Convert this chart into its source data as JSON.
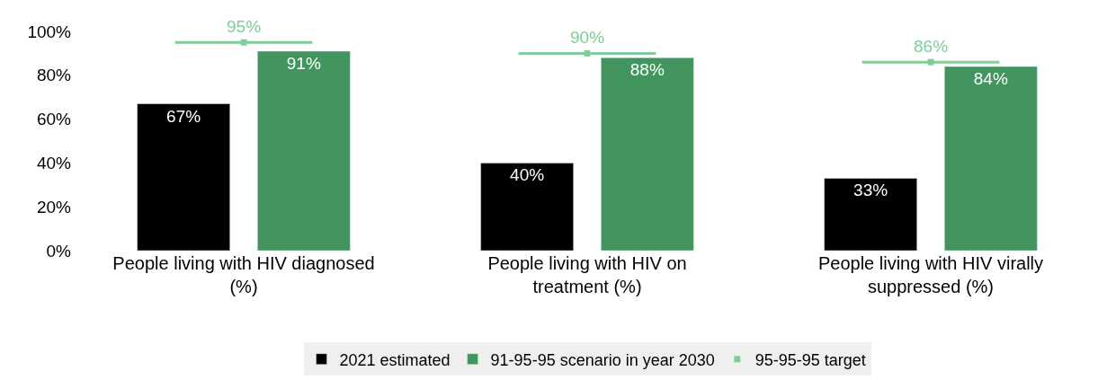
{
  "chart_data": {
    "type": "bar",
    "categories": [
      "People living with HIV diagnosed (%)",
      "People living with HIV on treatment (%)",
      "People living with HIV virally suppressed (%)"
    ],
    "series": [
      {
        "name": "2021 estimated",
        "color": "#000000",
        "values": [
          67,
          40,
          33
        ],
        "value_labels": [
          "67%",
          "40%",
          "33%"
        ]
      },
      {
        "name": "91-95-95 scenario in year 2030",
        "color": "#43955f",
        "values": [
          91,
          88,
          84
        ],
        "value_labels": [
          "91%",
          "88%",
          "84%"
        ]
      },
      {
        "name": "95-95-95 target",
        "type": "scatter",
        "color": "#82cc9b",
        "values": [
          95,
          90,
          86
        ],
        "value_labels": [
          "95%",
          "90%",
          "86%"
        ]
      }
    ],
    "ylim": [
      0,
      100
    ],
    "yticks": [
      {
        "value": 0,
        "label": "0%"
      },
      {
        "value": 20,
        "label": "20%"
      },
      {
        "value": 40,
        "label": "40%"
      },
      {
        "value": 60,
        "label": "60%"
      },
      {
        "value": 80,
        "label": "80%"
      },
      {
        "value": 100,
        "label": "100%"
      }
    ],
    "legend": "bottom"
  }
}
